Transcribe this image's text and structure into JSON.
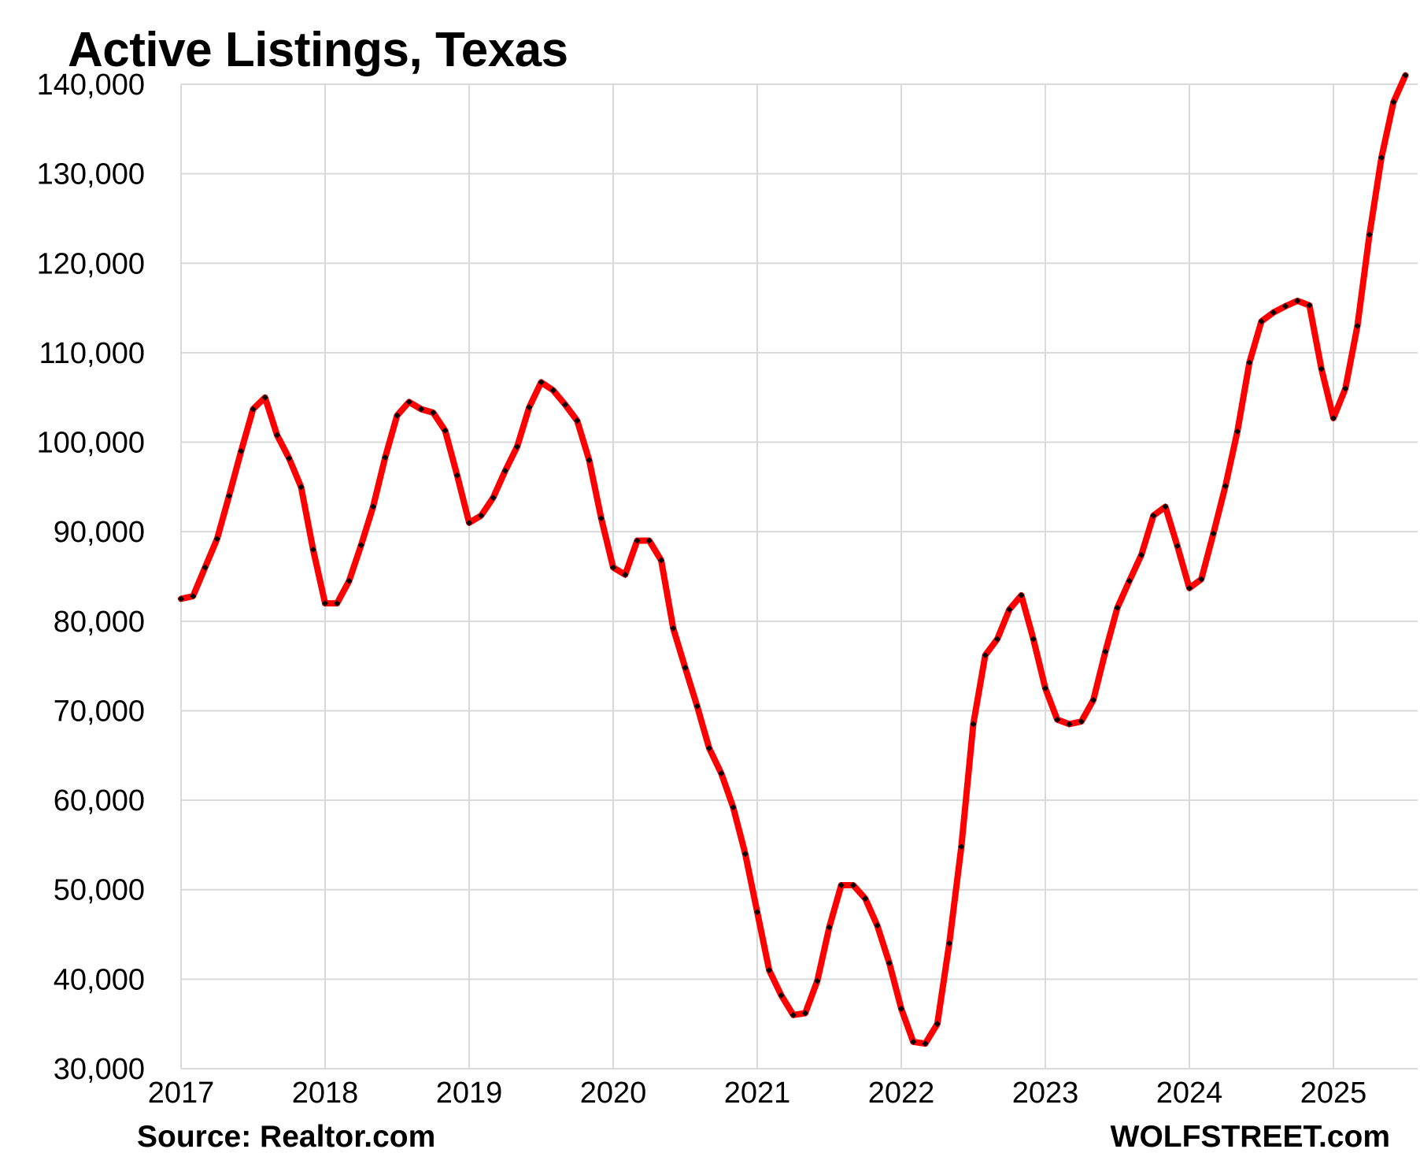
{
  "chart_data": {
    "type": "line",
    "title": "Active Listings, Texas",
    "source": "Source: Realtor.com",
    "brand": "WOLFSTREET.com",
    "xlabel": "",
    "ylabel": "",
    "ylim": [
      30000,
      140000
    ],
    "yticks": [
      30000,
      40000,
      50000,
      60000,
      70000,
      80000,
      90000,
      100000,
      110000,
      120000,
      130000,
      140000
    ],
    "ytick_labels": [
      "30,000",
      "40,000",
      "50,000",
      "60,000",
      "70,000",
      "80,000",
      "90,000",
      "100,000",
      "110,000",
      "120,000",
      "130,000",
      "140,000"
    ],
    "xticks": [
      2017,
      2018,
      2019,
      2020,
      2021,
      2022,
      2023,
      2024,
      2025
    ],
    "xtick_labels": [
      "2017",
      "2018",
      "2019",
      "2020",
      "2021",
      "2022",
      "2023",
      "2024",
      "2025"
    ],
    "grid": true,
    "line_color": "#ff0000",
    "marker_color": "#000000",
    "series": [
      {
        "start": "2017-01",
        "frequency": "monthly",
        "values": [
          82500,
          82800,
          86000,
          89200,
          94000,
          99000,
          103700,
          105000,
          100800,
          98200,
          95000,
          88000,
          82000,
          82000,
          84500,
          88500,
          92800,
          98300,
          103000,
          104500,
          103700,
          103300,
          101300,
          96300,
          91000,
          91800,
          93800,
          96800,
          99500,
          103900,
          106700,
          105800,
          104200,
          102400,
          98000,
          91500,
          86000,
          85200,
          89000,
          89000,
          86800,
          79200,
          74800,
          70500,
          65800,
          63000,
          59200,
          54000,
          47500,
          41000,
          38200,
          36000,
          36200,
          39800,
          45800,
          50500,
          50500,
          49000,
          46000,
          41800,
          36700,
          33000,
          32800,
          35000,
          44000,
          54800,
          68500,
          76200,
          78000,
          81300,
          82900,
          78000,
          72500,
          69000,
          68500,
          68800,
          71200,
          76600,
          81500,
          84500,
          87400,
          91800,
          92800,
          88400,
          83700,
          84700,
          89800,
          95100,
          101200,
          108900,
          113500,
          114500,
          115200,
          115800,
          115300,
          108200,
          102700,
          106000,
          113000,
          123200,
          131800,
          138000,
          141000
        ]
      }
    ]
  }
}
